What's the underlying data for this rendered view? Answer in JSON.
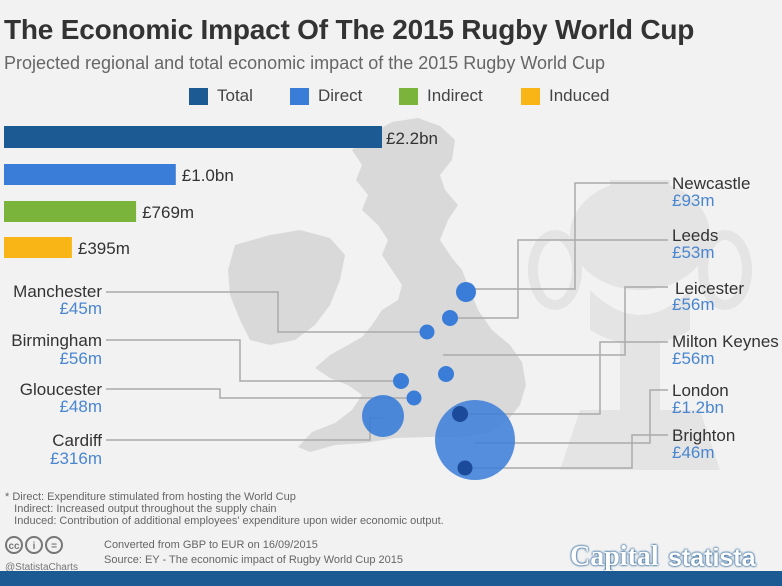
{
  "title": "The Economic Impact Of The 2015 Rugby World Cup",
  "subtitle": "Projected regional and total economic impact of the 2015 Rugby World Cup",
  "legend": [
    {
      "label": "Total",
      "color": "#1c5a93"
    },
    {
      "label": "Direct",
      "color": "#3a7dd8"
    },
    {
      "label": "Indirect",
      "color": "#7ab43a"
    },
    {
      "label": "Induced",
      "color": "#f8b515"
    }
  ],
  "chart_data": [
    {
      "type": "bar",
      "orientation": "horizontal",
      "categories": [
        "Total",
        "Direct",
        "Indirect",
        "Induced"
      ],
      "values": [
        2200,
        1000,
        769,
        395
      ],
      "unit": "£m",
      "data_labels": [
        "£2.2bn",
        "£1.0bn",
        "£769m",
        "£395m"
      ],
      "colors": [
        "#1c5a93",
        "#3a7dd8",
        "#7ab43a",
        "#f8b515"
      ],
      "xlim": [
        0,
        2200
      ]
    },
    {
      "type": "scatter",
      "variant": "bubble-map",
      "unit": "£m",
      "points": [
        {
          "city": "Newcastle",
          "value": 93,
          "label": "£93m"
        },
        {
          "city": "Leeds",
          "value": 53,
          "label": "£53m"
        },
        {
          "city": "Leicester",
          "value": 56,
          "label": "£56m"
        },
        {
          "city": "Milton Keynes",
          "value": 56,
          "label": "£56m"
        },
        {
          "city": "London",
          "value": 1200,
          "label": "£1.2bn"
        },
        {
          "city": "Brighton",
          "value": 46,
          "label": "£46m"
        },
        {
          "city": "Manchester",
          "value": 45,
          "label": "£45m"
        },
        {
          "city": "Birmingham",
          "value": 56,
          "label": "£56m"
        },
        {
          "city": "Gloucester",
          "value": 48,
          "label": "£48m"
        },
        {
          "city": "Cardiff",
          "value": 316,
          "label": "£316m"
        }
      ]
    }
  ],
  "footnote": [
    "* Direct: Expenditure stimulated from hosting the World Cup",
    "   Indirect: Increased output throughout the supply chain",
    "   Induced: Contribution of additional employees' expenditure upon wider economic output."
  ],
  "footer": {
    "handle": "@StatistaCharts",
    "note": "Converted from GBP to EUR on 16/09/2015",
    "source": "Source: EY - The economic impact of Rugby World Cup 2015",
    "brand_capital": "Capital",
    "brand_statista": "statista"
  },
  "colors": {
    "map": "#d9d9d9",
    "leader": "#aaaaaa",
    "label_text": "#333333",
    "value_text": "#4a86cf",
    "bubble_small": "#3a7dd8",
    "bubble_marker": "#1c4a9a"
  }
}
